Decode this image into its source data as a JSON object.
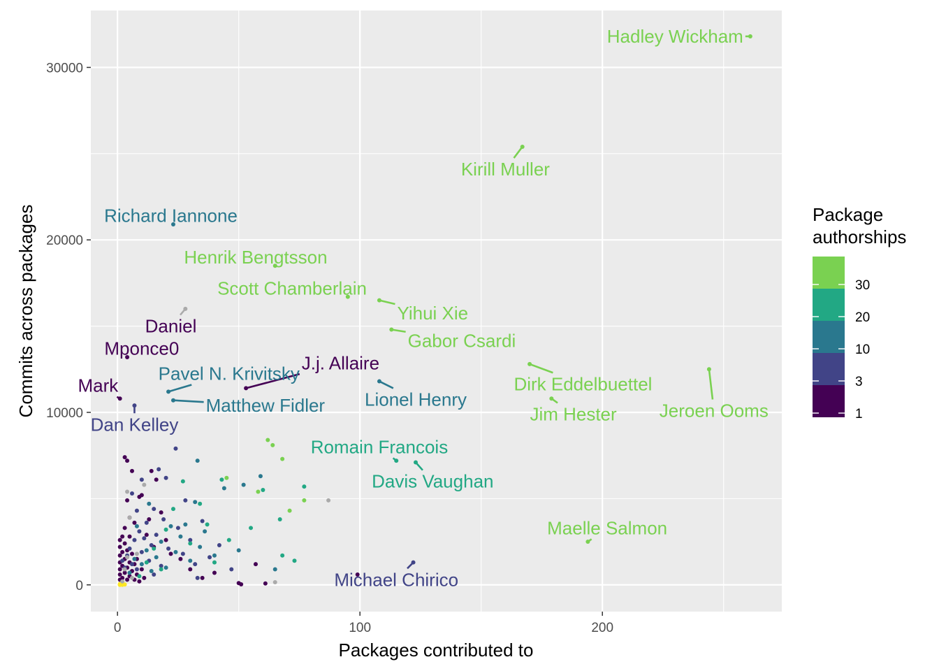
{
  "chart_data": {
    "type": "scatter",
    "title": "",
    "xlabel": "Packages contributed to",
    "ylabel": "Commits across packages",
    "xlim": [
      -11,
      274
    ],
    "ylim": [
      -1550,
      33300
    ],
    "x_ticks": [
      0,
      100,
      200
    ],
    "x_tick_labels": [
      "0",
      "100",
      "200"
    ],
    "y_ticks": [
      0,
      10000,
      20000,
      30000
    ],
    "y_tick_labels": [
      "0",
      "10000",
      "20000",
      "30000"
    ],
    "grid": true,
    "legend": {
      "title_lines": [
        "Package",
        "authorships"
      ],
      "placement": "right",
      "bins": [
        {
          "color": "#7ad151"
        },
        {
          "color": "#22a884"
        },
        {
          "color": "#2a788e"
        },
        {
          "color": "#414487"
        },
        {
          "color": "#440154"
        }
      ],
      "break_labels": [
        "30",
        "20",
        "10",
        "3",
        "1"
      ]
    },
    "labeled_points": [
      {
        "name": "Hadley Wickham",
        "x": 261,
        "y": 31800,
        "color": "#7ad151",
        "lx": 230,
        "ly": 31800
      },
      {
        "name": "Kirill Muller",
        "x": 167,
        "y": 25400,
        "color": "#7ad151",
        "lx": 160,
        "ly": 24100
      },
      {
        "name": "Richard Iannone",
        "x": 23,
        "y": 20900,
        "color": "#2a788e",
        "lx": 22,
        "ly": 21400
      },
      {
        "name": "Henrik Bengtsson",
        "x": 65,
        "y": 18500,
        "color": "#7ad151",
        "lx": 57,
        "ly": 19000
      },
      {
        "name": "Scott Chamberlain",
        "x": 95,
        "y": 16700,
        "color": "#7ad151",
        "lx": 72,
        "ly": 17200
      },
      {
        "name": "Yihui Xie",
        "x": 108,
        "y": 16500,
        "color": "#7ad151",
        "lx": 130,
        "ly": 15750
      },
      {
        "name": "Gabor Csardi",
        "x": 113,
        "y": 14800,
        "color": "#7ad151",
        "lx": 142,
        "ly": 14150
      },
      {
        "name": "Daniel",
        "x": 28,
        "y": 16000,
        "color": "#aaaaaa",
        "label_color": "#440154",
        "lx": 22,
        "ly": 15000
      },
      {
        "name": "Mponce0",
        "x": 4,
        "y": 13200,
        "color": "#440154",
        "lx": 10,
        "ly": 13700
      },
      {
        "name": "Pavel N. Krivitsky",
        "x": 21,
        "y": 11200,
        "color": "#2a788e",
        "lx": 46,
        "ly": 12250
      },
      {
        "name": "J.j. Allaire",
        "x": 53,
        "y": 11400,
        "color": "#440154",
        "lx": 92,
        "ly": 12850
      },
      {
        "name": "Lionel Henry",
        "x": 108,
        "y": 11800,
        "color": "#2a788e",
        "lx": 123,
        "ly": 10750
      },
      {
        "name": "Dirk Eddelbuettel",
        "x": 170,
        "y": 12800,
        "color": "#7ad151",
        "lx": 192,
        "ly": 11650
      },
      {
        "name": "Mark",
        "x": 1,
        "y": 10800,
        "color": "#440154",
        "lx": -8,
        "ly": 11550
      },
      {
        "name": "Matthew Fidler",
        "x": 23,
        "y": 10700,
        "color": "#2a788e",
        "lx": 61,
        "ly": 10400
      },
      {
        "name": "Dan Kelley",
        "x": 7,
        "y": 10400,
        "color": "#414487",
        "lx": 7,
        "ly": 9300
      },
      {
        "name": "Jim Hester",
        "x": 179,
        "y": 10800,
        "color": "#7ad151",
        "lx": 188,
        "ly": 9900
      },
      {
        "name": "Jeroen Ooms",
        "x": 244,
        "y": 12500,
        "color": "#7ad151",
        "lx": 246,
        "ly": 10100
      },
      {
        "name": "Romain Francois",
        "x": 115,
        "y": 7200,
        "color": "#22a884",
        "lx": 108,
        "ly": 8000
      },
      {
        "name": "Davis Vaughan",
        "x": 123,
        "y": 7100,
        "color": "#22a884",
        "lx": 130,
        "ly": 6000
      },
      {
        "name": "Maelle Salmon",
        "x": 194,
        "y": 2500,
        "color": "#7ad151",
        "lx": 202,
        "ly": 3300
      },
      {
        "name": "Michael Chirico",
        "x": 122,
        "y": 1300,
        "color": "#414487",
        "lx": 115,
        "ly": 300
      }
    ],
    "background_points": [
      [
        1,
        0,
        "#fde725"
      ],
      [
        2,
        0,
        "#fde725"
      ],
      [
        1,
        50,
        "#fde725"
      ],
      [
        3,
        20,
        "#fde725"
      ],
      [
        2,
        100,
        "#fde725"
      ],
      [
        1,
        10,
        "#fde725"
      ],
      [
        1,
        300,
        "#440154"
      ],
      [
        1,
        600,
        "#440154"
      ],
      [
        1,
        900,
        "#440154"
      ],
      [
        1,
        1300,
        "#440154"
      ],
      [
        1,
        1700,
        "#440154"
      ],
      [
        1,
        2200,
        "#440154"
      ],
      [
        1,
        2600,
        "#440154"
      ],
      [
        2,
        400,
        "#440154"
      ],
      [
        2,
        1100,
        "#440154"
      ],
      [
        2,
        1900,
        "#440154"
      ],
      [
        2,
        2800,
        "#440154"
      ],
      [
        3,
        700,
        "#440154"
      ],
      [
        3,
        1500,
        "#440154"
      ],
      [
        3,
        2400,
        "#440154"
      ],
      [
        4,
        300,
        "#440154"
      ],
      [
        4,
        1000,
        "#440154"
      ],
      [
        4,
        2000,
        "#440154"
      ],
      [
        5,
        500,
        "#440154"
      ],
      [
        5,
        1300,
        "#440154"
      ],
      [
        6,
        800,
        "#440154"
      ],
      [
        6,
        1800,
        "#440154"
      ],
      [
        7,
        300,
        "#440154"
      ],
      [
        7,
        1200,
        "#440154"
      ],
      [
        8,
        600,
        "#440154"
      ],
      [
        8,
        1500,
        "#440154"
      ],
      [
        9,
        200,
        "#440154"
      ],
      [
        10,
        900,
        "#440154"
      ],
      [
        11,
        400,
        "#440154"
      ],
      [
        3,
        7400,
        "#440154"
      ],
      [
        4,
        7200,
        "#440154"
      ],
      [
        6,
        6600,
        "#440154"
      ],
      [
        4,
        4900,
        "#440154"
      ],
      [
        5,
        3900,
        "#440154"
      ],
      [
        3,
        3300,
        "#440154"
      ],
      [
        9,
        5100,
        "#440154"
      ],
      [
        10,
        5200,
        "#440154"
      ],
      [
        13,
        3800,
        "#440154"
      ],
      [
        14,
        6600,
        "#440154"
      ],
      [
        16,
        6100,
        "#440154"
      ],
      [
        12,
        2900,
        "#440154"
      ],
      [
        15,
        2200,
        "#440154"
      ],
      [
        18,
        4200,
        "#440154"
      ],
      [
        20,
        2600,
        "#440154"
      ],
      [
        22,
        1800,
        "#440154"
      ],
      [
        26,
        1500,
        "#440154"
      ],
      [
        30,
        900,
        "#440154"
      ],
      [
        35,
        400,
        "#440154"
      ],
      [
        40,
        700,
        "#440154"
      ],
      [
        50,
        100,
        "#440154"
      ],
      [
        51,
        30,
        "#440154"
      ],
      [
        61,
        80,
        "#440154"
      ],
      [
        57,
        1200,
        "#440154"
      ],
      [
        99,
        600,
        "#440154"
      ],
      [
        5,
        2800,
        "#440154"
      ],
      [
        7,
        3600,
        "#440154"
      ],
      [
        2,
        1400,
        "#414487"
      ],
      [
        3,
        1000,
        "#414487"
      ],
      [
        4,
        1700,
        "#414487"
      ],
      [
        5,
        2100,
        "#414487"
      ],
      [
        6,
        1200,
        "#414487"
      ],
      [
        7,
        2600,
        "#414487"
      ],
      [
        8,
        900,
        "#414487"
      ],
      [
        9,
        3100,
        "#414487"
      ],
      [
        10,
        1900,
        "#414487"
      ],
      [
        11,
        2700,
        "#414487"
      ],
      [
        12,
        3600,
        "#414487"
      ],
      [
        13,
        1400,
        "#414487"
      ],
      [
        14,
        2300,
        "#414487"
      ],
      [
        15,
        4400,
        "#414487"
      ],
      [
        16,
        2900,
        "#414487"
      ],
      [
        18,
        1100,
        "#414487"
      ],
      [
        19,
        3800,
        "#414487"
      ],
      [
        20,
        6200,
        "#414487"
      ],
      [
        21,
        2100,
        "#414487"
      ],
      [
        24,
        7900,
        "#414487"
      ],
      [
        25,
        3300,
        "#414487"
      ],
      [
        27,
        1800,
        "#414487"
      ],
      [
        28,
        4900,
        "#414487"
      ],
      [
        30,
        2600,
        "#414487"
      ],
      [
        32,
        1200,
        "#414487"
      ],
      [
        35,
        3700,
        "#414487"
      ],
      [
        38,
        1600,
        "#414487"
      ],
      [
        42,
        2300,
        "#414487"
      ],
      [
        47,
        900,
        "#414487"
      ],
      [
        8,
        4300,
        "#414487"
      ],
      [
        6,
        5300,
        "#414487"
      ],
      [
        10,
        6100,
        "#414487"
      ],
      [
        17,
        6700,
        "#414487"
      ],
      [
        33,
        400,
        "#414487"
      ],
      [
        15,
        600,
        "#414487"
      ],
      [
        5,
        700,
        "#2a788e"
      ],
      [
        7,
        1500,
        "#2a788e"
      ],
      [
        10,
        1200,
        "#2a788e"
      ],
      [
        12,
        2000,
        "#2a788e"
      ],
      [
        14,
        800,
        "#2a788e"
      ],
      [
        16,
        1600,
        "#2a788e"
      ],
      [
        18,
        2500,
        "#2a788e"
      ],
      [
        20,
        1000,
        "#2a788e"
      ],
      [
        22,
        3400,
        "#2a788e"
      ],
      [
        24,
        1900,
        "#2a788e"
      ],
      [
        26,
        2800,
        "#2a788e"
      ],
      [
        28,
        3500,
        "#2a788e"
      ],
      [
        30,
        1400,
        "#2a788e"
      ],
      [
        32,
        4800,
        "#2a788e"
      ],
      [
        33,
        7200,
        "#2a788e"
      ],
      [
        34,
        2200,
        "#2a788e"
      ],
      [
        36,
        3100,
        "#2a788e"
      ],
      [
        40,
        1700,
        "#2a788e"
      ],
      [
        44,
        5600,
        "#2a788e"
      ],
      [
        50,
        2000,
        "#2a788e"
      ],
      [
        52,
        5800,
        "#2a788e"
      ],
      [
        59,
        6300,
        "#2a788e"
      ],
      [
        65,
        900,
        "#2a788e"
      ],
      [
        13,
        4700,
        "#2a788e"
      ],
      [
        8,
        3400,
        "#2a788e"
      ],
      [
        9,
        500,
        "#22a884"
      ],
      [
        12,
        1300,
        "#22a884"
      ],
      [
        15,
        2100,
        "#22a884"
      ],
      [
        18,
        900,
        "#22a884"
      ],
      [
        20,
        3200,
        "#22a884"
      ],
      [
        23,
        4400,
        "#22a884"
      ],
      [
        27,
        6000,
        "#22a884"
      ],
      [
        30,
        2400,
        "#22a884"
      ],
      [
        34,
        4700,
        "#22a884"
      ],
      [
        37,
        3500,
        "#22a884"
      ],
      [
        40,
        1300,
        "#22a884"
      ],
      [
        43,
        6100,
        "#22a884"
      ],
      [
        46,
        2600,
        "#22a884"
      ],
      [
        55,
        3300,
        "#22a884"
      ],
      [
        60,
        5500,
        "#22a884"
      ],
      [
        67,
        3800,
        "#22a884"
      ],
      [
        73,
        1400,
        "#22a884"
      ],
      [
        77,
        5700,
        "#22a884"
      ],
      [
        68,
        1700,
        "#22a884"
      ],
      [
        62,
        8400,
        "#7ad151"
      ],
      [
        64,
        8100,
        "#7ad151"
      ],
      [
        68,
        7300,
        "#7ad151"
      ],
      [
        71,
        4300,
        "#7ad151"
      ],
      [
        77,
        4900,
        "#7ad151"
      ],
      [
        58,
        5400,
        "#7ad151"
      ],
      [
        45,
        6200,
        "#7ad151"
      ],
      [
        2,
        200,
        "#aaaaaa"
      ],
      [
        3,
        900,
        "#aaaaaa"
      ],
      [
        4,
        1600,
        "#aaaaaa"
      ],
      [
        6,
        400,
        "#aaaaaa"
      ],
      [
        5,
        3900,
        "#aaaaaa"
      ],
      [
        4,
        5400,
        "#aaaaaa"
      ],
      [
        87,
        4900,
        "#aaaaaa"
      ],
      [
        65,
        150,
        "#aaaaaa"
      ],
      [
        11,
        5800,
        "#aaaaaa"
      ],
      [
        8,
        1800,
        "#aaaaaa"
      ]
    ]
  }
}
